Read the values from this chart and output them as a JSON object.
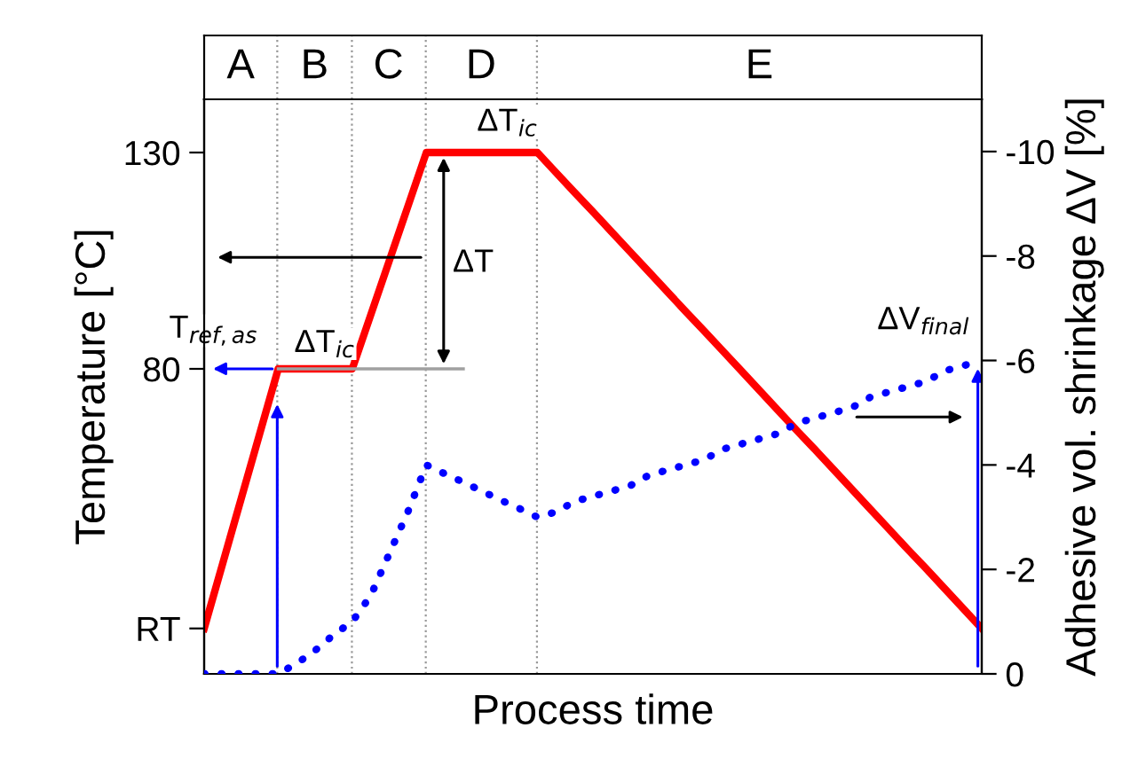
{
  "chart_data": {
    "type": "line",
    "xlabel": "Process time",
    "ylabel": "Temperature [°C]",
    "y2label": "Adhesive vol. shrinkage ΔV [%]",
    "categories": [
      null,
      null,
      null,
      null,
      null,
      null,
      null,
      null,
      null,
      null,
      null,
      null,
      null,
      null,
      null,
      null,
      null,
      null,
      null,
      null,
      null,
      null,
      null,
      null,
      null,
      null,
      null,
      null,
      null,
      null,
      null,
      null,
      null,
      null,
      null,
      null,
      null,
      null,
      null,
      null,
      null,
      null,
      null
    ],
    "ylim": [
      9.5,
      142.3
    ],
    "yticks": [
      {
        "value": 20,
        "label": "RT"
      },
      80,
      130
    ],
    "y2lim": [
      0,
      -11.0
    ],
    "y2ticks": [
      0,
      -2,
      -4,
      -6,
      -8,
      -10
    ],
    "series": [
      {
        "color": "#ff0000",
        "line_style": "solid",
        "values": [
          20,
          35,
          50,
          65,
          80,
          80,
          80,
          80,
          80,
          92.5,
          105,
          117.5,
          130,
          130,
          130,
          130,
          130,
          130,
          130,
          125.4,
          120.8,
          116.3,
          111.7,
          107.1,
          102.5,
          97.9,
          93.3,
          88.8,
          84.2,
          79.6,
          75,
          70.4,
          65.8,
          61.3,
          56.7,
          52.1,
          47.5,
          42.9,
          38.3,
          33.8,
          29.2,
          24.6,
          20
        ]
      },
      {
        "color": "#0000ff",
        "line_style": "dotted",
        "axis": "y2",
        "values": [
          0,
          0,
          0,
          0,
          0,
          -0.2,
          -0.45,
          -0.75,
          -1.0,
          -1.5,
          -2.3,
          -3.1,
          -4.0,
          -3.83,
          -3.67,
          -3.5,
          -3.33,
          -3.17,
          -3.0,
          -3.1,
          -3.3,
          -3.4,
          -3.5,
          -3.6,
          -3.8,
          -3.9,
          -4.0,
          -4.1,
          -4.3,
          -4.4,
          -4.5,
          -4.6,
          -4.8,
          -4.9,
          -5.0,
          -5.1,
          -5.3,
          -5.4,
          -5.5,
          -5.6,
          -5.8,
          -5.9,
          -6.0
        ]
      },
      {
        "color": "#a0a0a0",
        "line_style": "solid",
        "values": [
          null,
          null,
          null,
          null,
          80,
          80,
          80,
          80,
          80,
          80,
          80,
          80,
          80,
          80,
          80,
          null,
          null,
          null,
          null,
          null,
          null,
          null,
          null,
          null,
          null,
          null,
          null,
          null,
          null,
          null,
          null,
          null,
          null,
          null,
          null,
          null,
          null,
          null,
          null,
          null,
          null,
          null,
          null
        ]
      }
    ],
    "annotations": [
      "T$_{ref,as}$",
      "ΔT$_{ic}$",
      "ΔT$_{ic}$",
      "ΔT",
      "ΔV$_{final}$",
      "A",
      "B",
      "C",
      "D",
      "E"
    ]
  }
}
